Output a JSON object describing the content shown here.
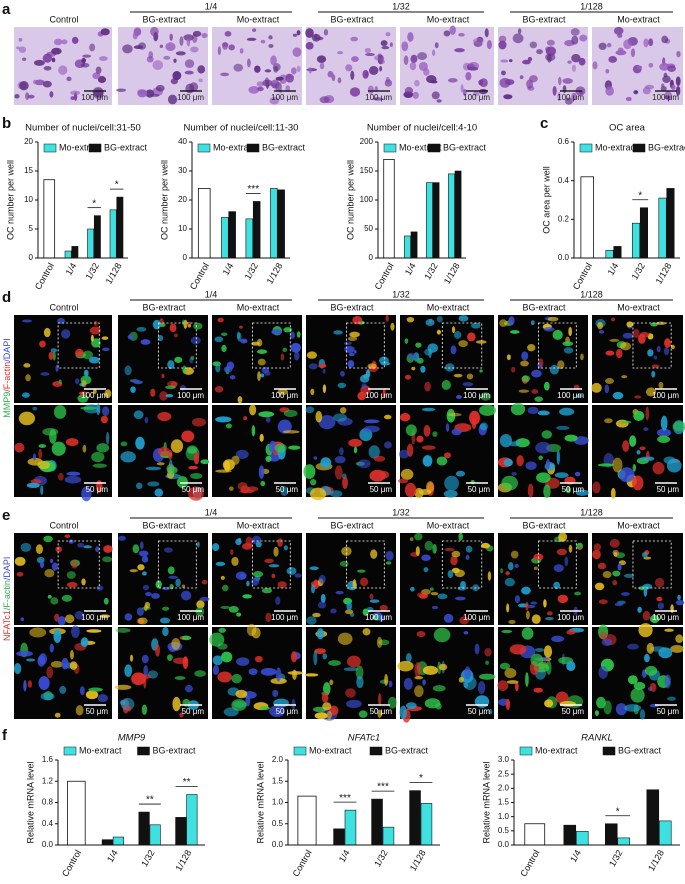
{
  "figure": {
    "letters": [
      "a",
      "b",
      "c",
      "d",
      "e",
      "f"
    ],
    "rows": [
      {
        "groups": [
          "1/4",
          "1/32",
          "1/128"
        ],
        "columns": [
          "Control",
          "BG-extract",
          "Mo-extract",
          "BG-extract",
          "Mo-extract",
          "BG-extract",
          "Mo-extract"
        ],
        "scale_bars": [
          "100 μm"
        ],
        "palette": "purple",
        "stain": []
      },
      {
        "groups": [
          "1/4",
          "1/32",
          "1/128"
        ],
        "columns": [
          "Control",
          "BG-extract",
          "Mo-extract",
          "BG-extract",
          "Mo-extract",
          "BG-extract",
          "Mo-extract"
        ],
        "scale_bars": [
          "100 μm",
          "50 μm"
        ],
        "palette": "fluorescent",
        "stain": [
          {
            "text": "MMP9",
            "color": "#2fb34a"
          },
          {
            "text": "/F-actin",
            "color": "#e0302a"
          },
          {
            "text": "/DAPI",
            "color": "#3a4fd8"
          }
        ]
      },
      {
        "groups": [
          "1/4",
          "1/32",
          "1/128"
        ],
        "columns": [
          "Control",
          "BG-extract",
          "Mo-extract",
          "BG-extract",
          "Mo-extract",
          "BG-extract",
          "Mo-extract"
        ],
        "scale_bars": [
          "100 μm",
          "50 μm"
        ],
        "palette": "fluorescent",
        "stain": [
          {
            "text": "NFATc1",
            "color": "#e0302a"
          },
          {
            "text": "/F-actin",
            "color": "#2fb34a"
          },
          {
            "text": "/DAPI",
            "color": "#3a4fd8"
          }
        ]
      }
    ]
  },
  "chart_data": [
    {
      "type": "bar",
      "title": "Number of nuclei/cell:31-50",
      "ylabel": "OC number per well",
      "categories": [
        "Control",
        "1/4",
        "1/32",
        "1/128"
      ],
      "control": 13.5,
      "control_color": "#ffffff",
      "series": [
        {
          "name": "Mo-extract",
          "color": "#3fe0e0",
          "values": [
            null,
            1.2,
            5,
            8.3
          ]
        },
        {
          "name": "BG-extract",
          "color": "#111111",
          "values": [
            null,
            2,
            7.3,
            10.5
          ]
        }
      ],
      "ylim": [
        0,
        20
      ],
      "yticks": [
        0,
        5,
        10,
        15,
        20
      ],
      "annotations": [
        {
          "x": "1/32",
          "text": "*"
        },
        {
          "x": "1/128",
          "text": "*"
        }
      ],
      "reverse_bars": false,
      "title_style": "normal"
    },
    {
      "type": "bar",
      "title": "Number of nuclei/cell:11-30",
      "ylabel": "OC number per well",
      "categories": [
        "Control",
        "1/4",
        "1/32",
        "1/128"
      ],
      "control": 24,
      "control_color": "#ffffff",
      "series": [
        {
          "name": "Mo-extract",
          "color": "#3fe0e0",
          "values": [
            null,
            14,
            13.5,
            24
          ]
        },
        {
          "name": "BG-extract",
          "color": "#111111",
          "values": [
            null,
            16,
            19.5,
            23.5
          ]
        }
      ],
      "ylim": [
        0,
        40
      ],
      "yticks": [
        0,
        10,
        20,
        30,
        40
      ],
      "annotations": [
        {
          "x": "1/32",
          "text": "***"
        }
      ],
      "reverse_bars": false,
      "title_style": "normal"
    },
    {
      "type": "bar",
      "title": "Number of nuclei/cell:4-10",
      "ylabel": "OC number per well",
      "categories": [
        "Control",
        "1/4",
        "1/32",
        "1/128"
      ],
      "control": 170,
      "control_color": "#ffffff",
      "series": [
        {
          "name": "Mo-extract",
          "color": "#3fe0e0",
          "values": [
            null,
            38,
            130,
            145
          ]
        },
        {
          "name": "BG-extract",
          "color": "#111111",
          "values": [
            null,
            45,
            130,
            150
          ]
        }
      ],
      "ylim": [
        0,
        200
      ],
      "yticks": [
        0,
        50,
        100,
        150,
        200
      ],
      "annotations": [],
      "reverse_bars": false,
      "title_style": "normal"
    },
    {
      "type": "bar",
      "title": "OC area",
      "ylabel": "OC area per well",
      "categories": [
        "Control",
        "1/4",
        "1/32",
        "1/128"
      ],
      "control": 0.42,
      "control_color": "#ffffff",
      "series": [
        {
          "name": "Mo-extract",
          "color": "#3fe0e0",
          "values": [
            null,
            0.04,
            0.18,
            0.31
          ]
        },
        {
          "name": "BG-extract",
          "color": "#111111",
          "values": [
            null,
            0.06,
            0.26,
            0.36
          ]
        }
      ],
      "ylim": [
        0,
        0.6
      ],
      "yticks": [
        {
          "value": 0,
          "label": "0.0"
        },
        0.2,
        0.4,
        0.6
      ],
      "annotations": [
        {
          "x": "1/32",
          "text": "*"
        }
      ],
      "reverse_bars": false,
      "title_style": "normal"
    },
    {
      "type": "bar",
      "title": "MMP9",
      "ylabel": "Relative mRNA level",
      "categories": [
        "Control",
        "1/4",
        "1/32",
        "1/128"
      ],
      "control": 1.2,
      "control_color": "#ffffff",
      "series": [
        {
          "name": "Mo-extract",
          "color": "#3fe0e0",
          "values": [
            null,
            0.15,
            0.38,
            0.95
          ]
        },
        {
          "name": "BG-extract",
          "color": "#111111",
          "values": [
            null,
            0.1,
            0.62,
            0.52
          ]
        }
      ],
      "ylim": [
        0,
        1.6
      ],
      "yticks": [
        {
          "value": 0,
          "label": "0.0"
        },
        0.4,
        0.8,
        1.2,
        1.6
      ],
      "annotations": [
        {
          "x": "1/32",
          "text": "**"
        },
        {
          "x": "1/128",
          "text": "**"
        }
      ],
      "reverse_bars": true,
      "title_style": "italic"
    },
    {
      "type": "bar",
      "title": "NFATc1",
      "ylabel": "Relative mRNA level",
      "categories": [
        "Control",
        "1/4",
        "1/32",
        "1/128"
      ],
      "control": 1.15,
      "control_color": "#ffffff",
      "series": [
        {
          "name": "Mo-extract",
          "color": "#3fe0e0",
          "values": [
            null,
            0.82,
            0.42,
            0.98
          ]
        },
        {
          "name": "BG-extract",
          "color": "#111111",
          "values": [
            null,
            0.38,
            1.08,
            1.28
          ]
        }
      ],
      "ylim": [
        0,
        2.0
      ],
      "yticks": [
        {
          "value": 0,
          "label": "0.0"
        },
        0.5,
        {
          "value": 1,
          "label": "1.0"
        },
        1.5,
        {
          "value": 2,
          "label": "2.0"
        }
      ],
      "annotations": [
        {
          "x": "1/4",
          "text": "***"
        },
        {
          "x": "1/32",
          "text": "***"
        },
        {
          "x": "1/128",
          "text": "*"
        }
      ],
      "reverse_bars": true,
      "title_style": "italic"
    },
    {
      "type": "bar",
      "title": "RANKL",
      "ylabel": "Relative mRNA level",
      "categories": [
        "Control",
        "1/4",
        "1/32",
        "1/128"
      ],
      "control": 0.75,
      "control_color": "#ffffff",
      "series": [
        {
          "name": "Mo-extract",
          "color": "#3fe0e0",
          "values": [
            null,
            0.48,
            0.25,
            0.85
          ]
        },
        {
          "name": "BG-extract",
          "color": "#111111",
          "values": [
            null,
            0.7,
            0.75,
            1.95
          ]
        }
      ],
      "ylim": [
        0,
        3.0
      ],
      "yticks": [
        {
          "value": 0,
          "label": "0.0"
        },
        0.5,
        {
          "value": 1,
          "label": "1.0"
        },
        1.5,
        {
          "value": 2,
          "label": "2.0"
        },
        2.5,
        {
          "value": 3,
          "label": "3.0"
        }
      ],
      "annotations": [
        {
          "x": "1/32",
          "text": "*"
        }
      ],
      "reverse_bars": true,
      "title_style": "italic"
    }
  ]
}
